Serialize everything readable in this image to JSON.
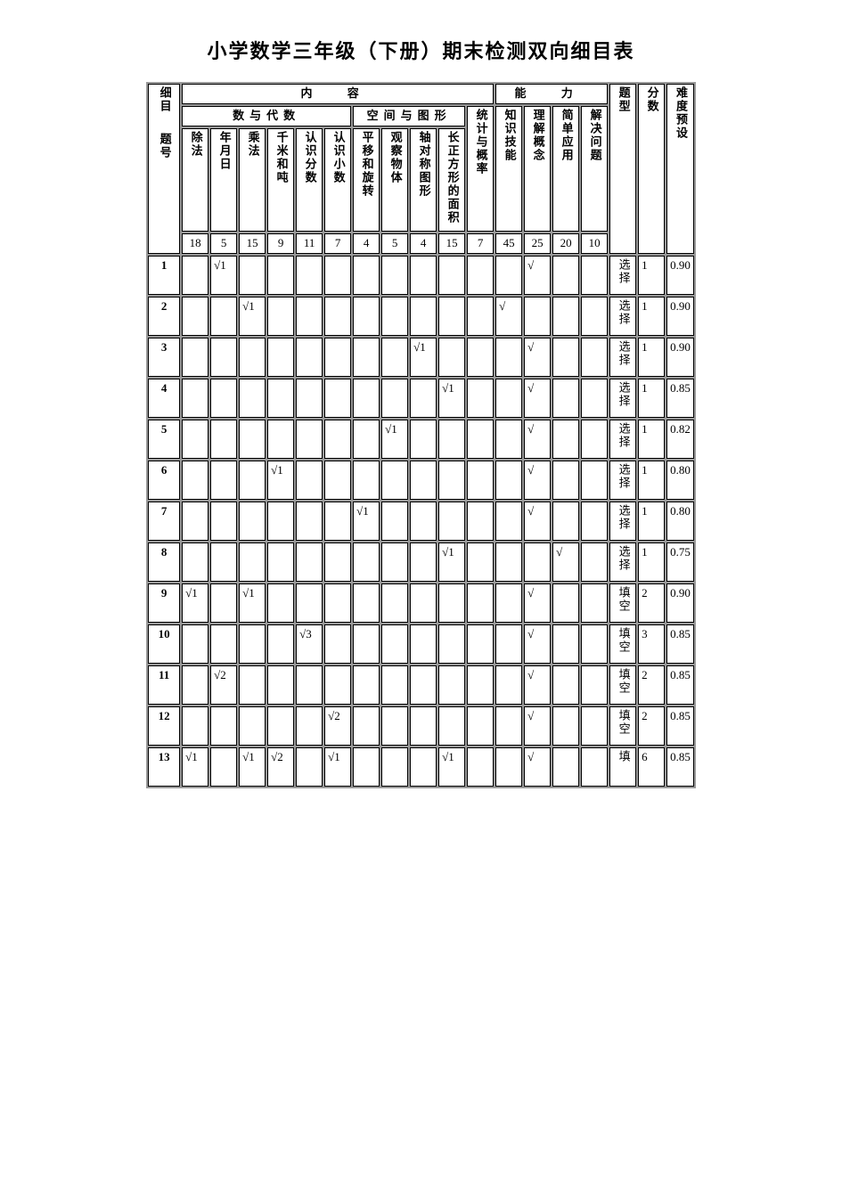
{
  "title": "小学数学三年级（下册）期末检测双向细目表",
  "hdr": {
    "content": "内    容",
    "ability": "能    力",
    "ximu": "细目",
    "tihao": "题号",
    "shu_and_algebra": "数与代数",
    "space_shape": "空间与图形",
    "stat_prob": "统计与概率",
    "knowl_skill": "知识技能",
    "understand": "理解概念",
    "simple_app": "简单应用",
    "solve_q": "解决问题",
    "qtype": "题型",
    "score": "分数",
    "difficulty": "难度预设"
  },
  "col": {
    "c1": "除法",
    "c2": "年月日",
    "c3": "乘法",
    "c4": "千米和吨",
    "c5": "认识分数",
    "c6": "认识小数",
    "c7": "平移和旋转",
    "c8": "观察物体",
    "c9": "轴对称图形",
    "c10": "长正方形的面积",
    "c11": "统计"
  },
  "totals": {
    "c1": "18",
    "c2": "5",
    "c3": "15",
    "c4": "9",
    "c5": "11",
    "c6": "7",
    "c7": "4",
    "c8": "5",
    "c9": "4",
    "c10": "15",
    "c11": "7",
    "a1": "45",
    "a2": "25",
    "a3": "20",
    "a4": "10"
  },
  "rows": [
    {
      "n": "1",
      "c1": "",
      "c2": "√1",
      "c3": "",
      "c4": "",
      "c5": "",
      "c6": "",
      "c7": "",
      "c8": "",
      "c9": "",
      "c10": "",
      "c11": "",
      "a1": "",
      "a2": "√",
      "a3": "",
      "a4": "",
      "t": "选择",
      "s": "1",
      "d": "0.90"
    },
    {
      "n": "2",
      "c1": "",
      "c2": "",
      "c3": "√1",
      "c4": "",
      "c5": "",
      "c6": "",
      "c7": "",
      "c8": "",
      "c9": "",
      "c10": "",
      "c11": "",
      "a1": "√",
      "a2": "",
      "a3": "",
      "a4": "",
      "t": "选择",
      "s": "1",
      "d": "0.90"
    },
    {
      "n": "3",
      "c1": "",
      "c2": "",
      "c3": "",
      "c4": "",
      "c5": "",
      "c6": "",
      "c7": "",
      "c8": "",
      "c9": "√1",
      "c10": "",
      "c11": "",
      "a1": "",
      "a2": "√",
      "a3": "",
      "a4": "",
      "t": "选择",
      "s": "1",
      "d": "0.90"
    },
    {
      "n": "4",
      "c1": "",
      "c2": "",
      "c3": "",
      "c4": "",
      "c5": "",
      "c6": "",
      "c7": "",
      "c8": "",
      "c9": "",
      "c10": "√1",
      "c11": "",
      "a1": "",
      "a2": "√",
      "a3": "",
      "a4": "",
      "t": "选择",
      "s": "1",
      "d": "0.85"
    },
    {
      "n": "5",
      "c1": "",
      "c2": "",
      "c3": "",
      "c4": "",
      "c5": "",
      "c6": "",
      "c7": "",
      "c8": "√1",
      "c9": "",
      "c10": "",
      "c11": "",
      "a1": "",
      "a2": "√",
      "a3": "",
      "a4": "",
      "t": "选择",
      "s": "1",
      "d": "0.82"
    },
    {
      "n": "6",
      "c1": "",
      "c2": "",
      "c3": "",
      "c4": "√1",
      "c5": "",
      "c6": "",
      "c7": "",
      "c8": "",
      "c9": "",
      "c10": "",
      "c11": "",
      "a1": "",
      "a2": "√",
      "a3": "",
      "a4": "",
      "t": "选择",
      "s": "1",
      "d": "0.80"
    },
    {
      "n": "7",
      "c1": "",
      "c2": "",
      "c3": "",
      "c4": "",
      "c5": "",
      "c6": "",
      "c7": "√1",
      "c8": "",
      "c9": "",
      "c10": "",
      "c11": "",
      "a1": "",
      "a2": "√",
      "a3": "",
      "a4": "",
      "t": "选择",
      "s": "1",
      "d": "0.80"
    },
    {
      "n": "8",
      "c1": "",
      "c2": "",
      "c3": "",
      "c4": "",
      "c5": "",
      "c6": "",
      "c7": "",
      "c8": "",
      "c9": "",
      "c10": "√1",
      "c11": "",
      "a1": "",
      "a2": "",
      "a3": "√",
      "a4": "",
      "t": "选择",
      "s": "1",
      "d": "0.75"
    },
    {
      "n": "9",
      "c1": "√1",
      "c2": "",
      "c3": "√1",
      "c4": "",
      "c5": "",
      "c6": "",
      "c7": "",
      "c8": "",
      "c9": "",
      "c10": "",
      "c11": "",
      "a1": "",
      "a2": "√",
      "a3": "",
      "a4": "",
      "t": "填空",
      "s": "2",
      "d": "0.90"
    },
    {
      "n": "10",
      "c1": "",
      "c2": "",
      "c3": "",
      "c4": "",
      "c5": "√3",
      "c6": "",
      "c7": "",
      "c8": "",
      "c9": "",
      "c10": "",
      "c11": "",
      "a1": "",
      "a2": "√",
      "a3": "",
      "a4": "",
      "t": "填空",
      "s": "3",
      "d": "0.85"
    },
    {
      "n": "11",
      "c1": "",
      "c2": "√2",
      "c3": "",
      "c4": "",
      "c5": "",
      "c6": "",
      "c7": "",
      "c8": "",
      "c9": "",
      "c10": "",
      "c11": "",
      "a1": "",
      "a2": "√",
      "a3": "",
      "a4": "",
      "t": "填空",
      "s": "2",
      "d": "0.85"
    },
    {
      "n": "12",
      "c1": "",
      "c2": "",
      "c3": "",
      "c4": "",
      "c5": "",
      "c6": "√2",
      "c7": "",
      "c8": "",
      "c9": "",
      "c10": "",
      "c11": "",
      "a1": "",
      "a2": "√",
      "a3": "",
      "a4": "",
      "t": "填空",
      "s": "2",
      "d": "0.85"
    },
    {
      "n": "13",
      "c1": "√1",
      "c2": "",
      "c3": "√1",
      "c4": "√2",
      "c5": "",
      "c6": "√1",
      "c7": "",
      "c8": "",
      "c9": "",
      "c10": "√1",
      "c11": "",
      "a1": "",
      "a2": "√",
      "a3": "",
      "a4": "",
      "t": "填",
      "s": "6",
      "d": "0.85"
    }
  ]
}
